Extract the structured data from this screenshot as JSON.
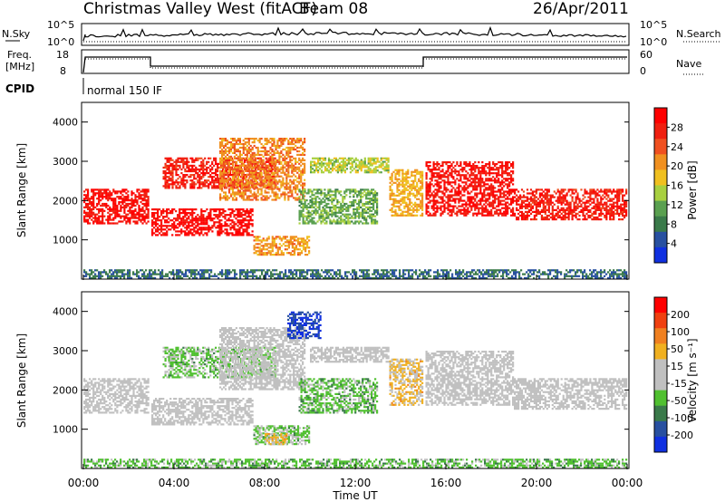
{
  "header": {
    "site": "Christmas Valley West (fitACF)",
    "beam": "Beam 08",
    "date": "26/Apr/2011"
  },
  "param_panels": {
    "nsky": {
      "label": "N.Sky",
      "tick_top": "10^5",
      "tick_bottom": "10^0",
      "right_label": "N.Search",
      "right_tick_top": "10^5",
      "right_tick_bottom": "10^0"
    },
    "freq": {
      "label_line1": "Freq.",
      "label_line2": "[MHz]",
      "tick_top": "18",
      "tick_bottom": "8",
      "right_label": "Nave",
      "right_tick_top": "60",
      "right_tick_bottom": "0"
    },
    "cpid": {
      "label": "CPID",
      "text": "normal 150 IF"
    }
  },
  "colors": {
    "power": [
      "#1030e0",
      "#2850a0",
      "#3a7a4a",
      "#5aa050",
      "#a8d040",
      "#f0c020",
      "#f09020",
      "#f05020",
      "#f02010",
      "#ff0000"
    ],
    "velocity": [
      "#1030e0",
      "#2850a0",
      "#3a7a4a",
      "#50c030",
      "#c0c0c0",
      "#c0c0c0",
      "#f0b020",
      "#f08020",
      "#f04010",
      "#ff0000"
    ]
  },
  "chart_data": [
    {
      "type": "heatmap",
      "title": "",
      "xlabel": "Time UT",
      "ylabel": "Slant Range [km]",
      "x_ticks": [
        "00:00",
        "04:00",
        "08:00",
        "12:00",
        "16:00",
        "20:00",
        "00:00"
      ],
      "xlim": [
        0,
        24
      ],
      "y_ticks": [
        "1000",
        "2000",
        "3000",
        "4000"
      ],
      "ylim": [
        0,
        4500
      ],
      "colorbar_label": "Power [dB]",
      "colorbar_ticks": [
        "4",
        "8",
        "12",
        "16",
        "20",
        "24",
        "28"
      ],
      "colorbar_range": [
        0,
        30
      ],
      "scatter_bands": [
        {
          "t0": 0.0,
          "t1": 2.9,
          "r_low": 1400,
          "r_high": 2300,
          "v": 27
        },
        {
          "t0": 3.0,
          "t1": 7.5,
          "r_low": 1100,
          "r_high": 1800,
          "v": 28
        },
        {
          "t0": 3.5,
          "t1": 8.5,
          "r_low": 2300,
          "r_high": 3100,
          "v": 26
        },
        {
          "t0": 6.0,
          "t1": 9.8,
          "r_low": 2000,
          "r_high": 3600,
          "v": 20
        },
        {
          "t0": 10.0,
          "t1": 13.5,
          "r_low": 2700,
          "r_high": 3100,
          "v": 14
        },
        {
          "t0": 13.5,
          "t1": 15.0,
          "r_low": 1600,
          "r_high": 2800,
          "v": 18
        },
        {
          "t0": 9.5,
          "t1": 13.0,
          "r_low": 1400,
          "r_high": 2300,
          "v": 11
        },
        {
          "t0": 7.5,
          "t1": 10.0,
          "r_low": 600,
          "r_high": 1100,
          "v": 19
        },
        {
          "t0": 15.1,
          "t1": 19.0,
          "r_low": 1600,
          "r_high": 3000,
          "v": 27
        },
        {
          "t0": 19.0,
          "t1": 24.0,
          "r_low": 1500,
          "r_high": 2300,
          "v": 26
        },
        {
          "t0": 0.0,
          "t1": 24.0,
          "r_low": 0,
          "r_high": 250,
          "v": 6
        }
      ]
    },
    {
      "type": "heatmap",
      "title": "",
      "xlabel": "Time UT",
      "ylabel": "Slant Range [km]",
      "x_ticks": [
        "00:00",
        "04:00",
        "08:00",
        "12:00",
        "16:00",
        "20:00",
        "00:00"
      ],
      "xlim": [
        0,
        24
      ],
      "y_ticks": [
        "1000",
        "2000",
        "3000",
        "4000"
      ],
      "ylim": [
        0,
        4500
      ],
      "colorbar_label": "Velocity [m s⁻¹]",
      "colorbar_ticks": [
        "200",
        "100",
        "50",
        "15",
        "-15",
        "-50",
        "-100",
        "-200"
      ],
      "colorbar_range": [
        -250,
        250
      ],
      "scatter_bands": [
        {
          "t0": 0.0,
          "t1": 2.9,
          "r_low": 1400,
          "r_high": 2300,
          "v": 0
        },
        {
          "t0": 3.0,
          "t1": 7.5,
          "r_low": 1100,
          "r_high": 1800,
          "v": 0
        },
        {
          "t0": 3.5,
          "t1": 8.5,
          "r_low": 2300,
          "r_high": 3100,
          "v": -60
        },
        {
          "t0": 6.0,
          "t1": 9.8,
          "r_low": 2000,
          "r_high": 3600,
          "v": 0
        },
        {
          "t0": 9.0,
          "t1": 10.5,
          "r_low": 3300,
          "r_high": 4000,
          "v": -200
        },
        {
          "t0": 10.0,
          "t1": 13.5,
          "r_low": 2700,
          "r_high": 3100,
          "v": 0
        },
        {
          "t0": 13.5,
          "t1": 15.0,
          "r_low": 1600,
          "r_high": 2800,
          "v": 60
        },
        {
          "t0": 9.5,
          "t1": 13.0,
          "r_low": 1400,
          "r_high": 2300,
          "v": -70
        },
        {
          "t0": 7.5,
          "t1": 10.0,
          "r_low": 600,
          "r_high": 1100,
          "v": -60
        },
        {
          "t0": 8.0,
          "t1": 9.0,
          "r_low": 600,
          "r_high": 900,
          "v": 60
        },
        {
          "t0": 15.1,
          "t1": 19.0,
          "r_low": 1600,
          "r_high": 3000,
          "v": 0
        },
        {
          "t0": 19.0,
          "t1": 24.0,
          "r_low": 1500,
          "r_high": 2300,
          "v": 0
        },
        {
          "t0": 0.0,
          "t1": 24.0,
          "r_low": 0,
          "r_high": 250,
          "v": -70
        }
      ]
    }
  ]
}
